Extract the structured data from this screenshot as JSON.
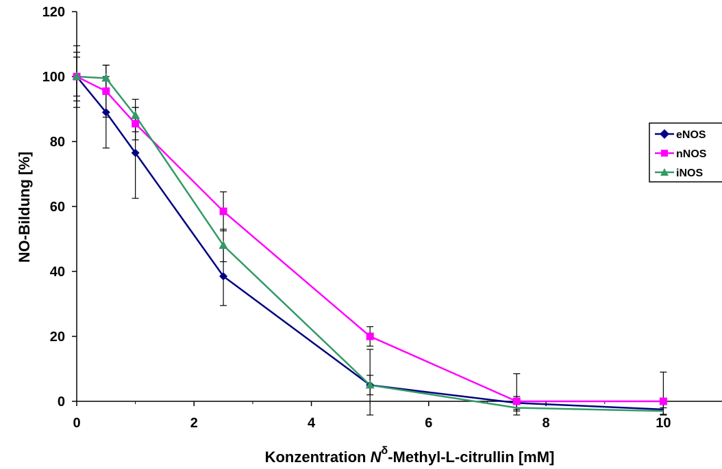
{
  "chart_data": {
    "type": "line",
    "xlabel_parts": [
      "Konzentration ",
      "N",
      "δ",
      "-Methyl-L-citrullin [mM]"
    ],
    "ylabel": "NO-Bildung [%]",
    "xlim": [
      0,
      11
    ],
    "ylim": [
      0,
      120
    ],
    "x_ticks": [
      "0",
      "2",
      "4",
      "6",
      "8",
      "10"
    ],
    "y_ticks": [
      "0",
      "20",
      "40",
      "60",
      "80",
      "100",
      "120"
    ],
    "grid": false,
    "legend_position": "right",
    "series": [
      {
        "name": "eNOS",
        "color": "#000080",
        "marker": "diamond",
        "x": [
          0,
          0.5,
          1,
          2.5,
          5,
          7.5,
          10
        ],
        "y": [
          100,
          89,
          76.5,
          38.5,
          5,
          -0.5,
          -2.5
        ],
        "err": [
          9.5,
          11,
          14,
          9,
          11,
          2,
          2
        ]
      },
      {
        "name": "nNOS",
        "color": "#ff00ff",
        "marker": "square",
        "x": [
          0,
          0.5,
          1,
          2.5,
          5,
          7.5,
          10
        ],
        "y": [
          100,
          95.5,
          85.5,
          58.5,
          20,
          0,
          0
        ],
        "err": [
          6,
          8,
          5,
          6,
          3,
          8.5,
          9
        ]
      },
      {
        "name": "iNOS",
        "color": "#339966",
        "marker": "triangle",
        "x": [
          0,
          0.5,
          1,
          2.5,
          5,
          7.5,
          10
        ],
        "y": [
          100,
          99.5,
          88,
          48,
          5,
          -2,
          -3
        ],
        "err": [
          7.5,
          4,
          5,
          5,
          3,
          1,
          1
        ]
      }
    ]
  }
}
